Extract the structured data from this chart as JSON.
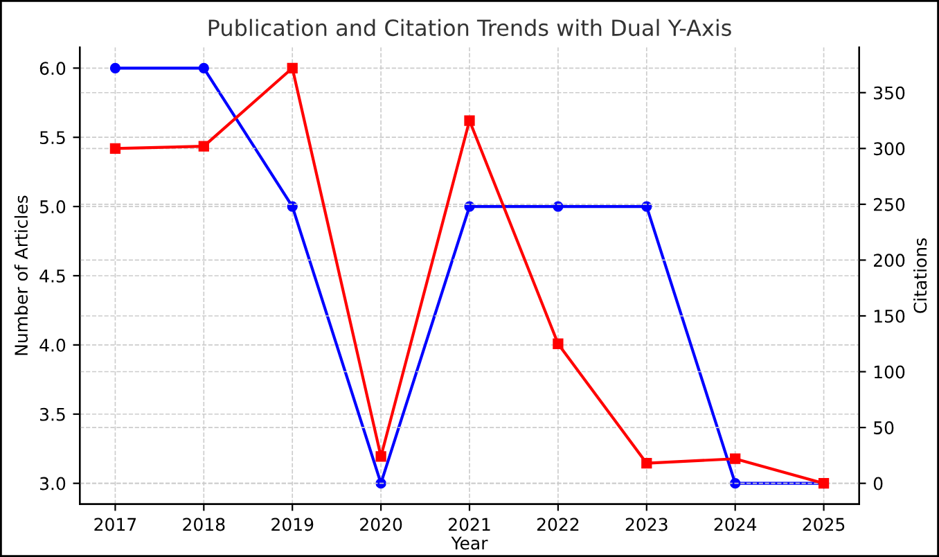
{
  "chart_data": {
    "type": "line",
    "title": "Publication and Citation Trends with Dual Y-Axis",
    "xlabel": "Year",
    "ylabel": "Number of Articles",
    "y2label": "Citations",
    "x": [
      2017,
      2018,
      2019,
      2020,
      2021,
      2022,
      2023,
      2024,
      2025
    ],
    "xlim": [
      2016.6,
      2025.4
    ],
    "xticks": [
      2017,
      2018,
      2019,
      2020,
      2021,
      2022,
      2023,
      2024,
      2025
    ],
    "ylim": [
      2.85,
      6.15
    ],
    "yticks": [
      {
        "value": 3,
        "label": "3.0"
      },
      {
        "value": 3.5,
        "label": "3.5"
      },
      {
        "value": 4,
        "label": "4.0"
      },
      {
        "value": 4.5,
        "label": "4.5"
      },
      {
        "value": 5,
        "label": "5.0"
      },
      {
        "value": 5.5,
        "label": "5.5"
      },
      {
        "value": 6,
        "label": "6.0"
      }
    ],
    "y2lim": [
      -18.6,
      390.6
    ],
    "y2ticks": [
      0,
      50,
      100,
      150,
      200,
      250,
      300,
      350
    ],
    "grid": true,
    "line_style": "solid",
    "series": [
      {
        "color": "#0000ff",
        "marker": "circle",
        "values": [
          6,
          6,
          5,
          3,
          5,
          5,
          5,
          3,
          3
        ]
      },
      {
        "color": "#ff0000",
        "marker": "square",
        "axis": "y2",
        "values": [
          300,
          302,
          372,
          24,
          325,
          125,
          18,
          22,
          0
        ]
      }
    ]
  }
}
